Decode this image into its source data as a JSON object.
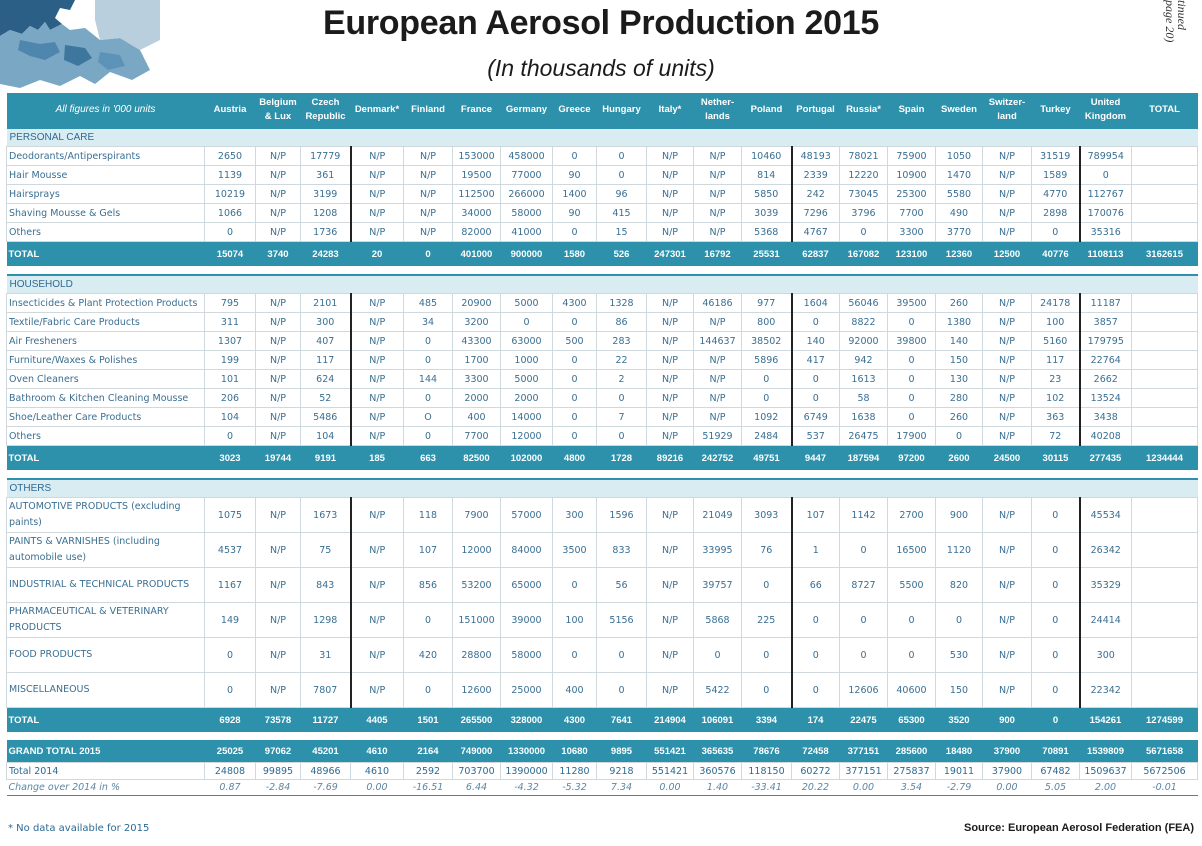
{
  "title": "European Aerosol Production 2015",
  "subtitle": "(In thousands of units)",
  "continued": [
    "tinued",
    "page 20)"
  ],
  "header": {
    "first": "All figures in '000 units",
    "columns": [
      "Austria",
      "Belgium & Lux",
      "Czech Republic",
      "Denmark*",
      "Finland",
      "France",
      "Germany",
      "Greece",
      "Hungary",
      "Italy*",
      "Nether-lands",
      "Poland",
      "Portugal",
      "Russia*",
      "Spain",
      "Sweden",
      "Switzer-land",
      "Turkey",
      "United Kingdom",
      "TOTAL"
    ]
  },
  "sections": [
    {
      "name": "PERSONAL CARE",
      "rows": [
        {
          "label": "Deodorants/Antiperspirants",
          "values": [
            "2650",
            "N/P",
            "17779",
            "N/P",
            "N/P",
            "153000",
            "458000",
            "0",
            "0",
            "N/P",
            "N/P",
            "10460",
            "48193",
            "78021",
            "75900",
            "1050",
            "N/P",
            "31519",
            "789954",
            ""
          ]
        },
        {
          "label": "Hair Mousse",
          "values": [
            "1139",
            "N/P",
            "361",
            "N/P",
            "N/P",
            "19500",
            "77000",
            "90",
            "0",
            "N/P",
            "N/P",
            "814",
            "2339",
            "12220",
            "10900",
            "1470",
            "N/P",
            "1589",
            "0",
            ""
          ]
        },
        {
          "label": "Hairsprays",
          "values": [
            "10219",
            "N/P",
            "3199",
            "N/P",
            "N/P",
            "112500",
            "266000",
            "1400",
            "96",
            "N/P",
            "N/P",
            "5850",
            "242",
            "73045",
            "25300",
            "5580",
            "N/P",
            "4770",
            "112767",
            ""
          ]
        },
        {
          "label": "Shaving Mousse & Gels",
          "values": [
            "1066",
            "N/P",
            "1208",
            "N/P",
            "N/P",
            "34000",
            "58000",
            "90",
            "415",
            "N/P",
            "N/P",
            "3039",
            "7296",
            "3796",
            "7700",
            "490",
            "N/P",
            "2898",
            "170076",
            ""
          ]
        },
        {
          "label": "Others",
          "values": [
            "0",
            "N/P",
            "1736",
            "N/P",
            "N/P",
            "82000",
            "41000",
            "0",
            "15",
            "N/P",
            "N/P",
            "5368",
            "4767",
            "0",
            "3300",
            "3770",
            "N/P",
            "0",
            "35316",
            ""
          ]
        }
      ],
      "total": {
        "label": "TOTAL",
        "values": [
          "15074",
          "3740",
          "24283",
          "20",
          "0",
          "401000",
          "900000",
          "1580",
          "526",
          "247301",
          "16792",
          "25531",
          "62837",
          "167082",
          "123100",
          "12360",
          "12500",
          "40776",
          "1108113",
          "3162615"
        ]
      }
    },
    {
      "name": "HOUSEHOLD",
      "rows": [
        {
          "label": "Insecticides & Plant Protection Products",
          "values": [
            "795",
            "N/P",
            "2101",
            "N/P",
            "485",
            "20900",
            "5000",
            "4300",
            "1328",
            "N/P",
            "46186",
            "977",
            "1604",
            "56046",
            "39500",
            "260",
            "N/P",
            "24178",
            "11187",
            ""
          ]
        },
        {
          "label": "Textile/Fabric Care Products",
          "values": [
            "311",
            "N/P",
            "300",
            "N/P",
            "34",
            "3200",
            "0",
            "0",
            "86",
            "N/P",
            "N/P",
            "800",
            "0",
            "8822",
            "0",
            "1380",
            "N/P",
            "100",
            "3857",
            ""
          ]
        },
        {
          "label": "Air Fresheners",
          "values": [
            "1307",
            "N/P",
            "407",
            "N/P",
            "0",
            "43300",
            "63000",
            "500",
            "283",
            "N/P",
            "144637",
            "38502",
            "140",
            "92000",
            "39800",
            "140",
            "N/P",
            "5160",
            "179795",
            ""
          ]
        },
        {
          "label": "Furniture/Waxes & Polishes",
          "values": [
            "199",
            "N/P",
            "117",
            "N/P",
            "0",
            "1700",
            "1000",
            "0",
            "22",
            "N/P",
            "N/P",
            "5896",
            "417",
            "942",
            "0",
            "150",
            "N/P",
            "117",
            "22764",
            ""
          ]
        },
        {
          "label": "Oven Cleaners",
          "values": [
            "101",
            "N/P",
            "624",
            "N/P",
            "144",
            "3300",
            "5000",
            "0",
            "2",
            "N/P",
            "N/P",
            "0",
            "0",
            "1613",
            "0",
            "130",
            "N/P",
            "23",
            "2662",
            ""
          ]
        },
        {
          "label": "Bathroom & Kitchen Cleaning Mousse",
          "values": [
            "206",
            "N/P",
            "52",
            "N/P",
            "0",
            "2000",
            "2000",
            "0",
            "0",
            "N/P",
            "N/P",
            "0",
            "0",
            "58",
            "0",
            "280",
            "N/P",
            "102",
            "13524",
            ""
          ]
        },
        {
          "label": "Shoe/Leather Care Products",
          "values": [
            "104",
            "N/P",
            "5486",
            "N/P",
            "O",
            "400",
            "14000",
            "0",
            "7",
            "N/P",
            "N/P",
            "1092",
            "6749",
            "1638",
            "0",
            "260",
            "N/P",
            "363",
            "3438",
            ""
          ]
        },
        {
          "label": "Others",
          "values": [
            "0",
            "N/P",
            "104",
            "N/P",
            "0",
            "7700",
            "12000",
            "0",
            "0",
            "N/P",
            "51929",
            "2484",
            "537",
            "26475",
            "17900",
            "0",
            "N/P",
            "72",
            "40208",
            ""
          ]
        }
      ],
      "total": {
        "label": "TOTAL",
        "values": [
          "3023",
          "19744",
          "9191",
          "185",
          "663",
          "82500",
          "102000",
          "4800",
          "1728",
          "89216",
          "242752",
          "49751",
          "9447",
          "187594",
          "97200",
          "2600",
          "24500",
          "30115",
          "277435",
          "1234444"
        ]
      }
    },
    {
      "name": "OTHERS",
      "rows": [
        {
          "label": "AUTOMOTIVE PRODUCTS (excluding paints)",
          "values": [
            "1075",
            "N/P",
            "1673",
            "N/P",
            "118",
            "7900",
            "57000",
            "300",
            "1596",
            "N/P",
            "21049",
            "3093",
            "107",
            "1142",
            "2700",
            "900",
            "N/P",
            "0",
            "45534",
            ""
          ]
        },
        {
          "label": "PAINTS & VARNISHES (including automobile use)",
          "values": [
            "4537",
            "N/P",
            "75",
            "N/P",
            "107",
            "12000",
            "84000",
            "3500",
            "833",
            "N/P",
            "33995",
            "76",
            "1",
            "0",
            "16500",
            "1120",
            "N/P",
            "0",
            "26342",
            ""
          ]
        },
        {
          "label": "INDUSTRIAL & TECHNICAL PRODUCTS",
          "values": [
            "1167",
            "N/P",
            "843",
            "N/P",
            "856",
            "53200",
            "65000",
            "0",
            "56",
            "N/P",
            "39757",
            "0",
            "66",
            "8727",
            "5500",
            "820",
            "N/P",
            "0",
            "35329",
            ""
          ]
        },
        {
          "label": "PHARMACEUTICAL & VETERINARY PRODUCTS",
          "values": [
            "149",
            "N/P",
            "1298",
            "N/P",
            "0",
            "151000",
            "39000",
            "100",
            "5156",
            "N/P",
            "5868",
            "225",
            "0",
            "0",
            "0",
            "0",
            "N/P",
            "0",
            "24414",
            ""
          ]
        },
        {
          "label": "FOOD PRODUCTS",
          "values": [
            "0",
            "N/P",
            "31",
            "N/P",
            "420",
            "28800",
            "58000",
            "0",
            "0",
            "N/P",
            "0",
            "0",
            "0",
            "0",
            "0",
            "530",
            "N/P",
            "0",
            "300",
            ""
          ]
        },
        {
          "label": "MISCELLANEOUS",
          "values": [
            "0",
            "N/P",
            "7807",
            "N/P",
            "0",
            "12600",
            "25000",
            "400",
            "0",
            "N/P",
            "5422",
            "0",
            "0",
            "12606",
            "40600",
            "150",
            "N/P",
            "0",
            "22342",
            ""
          ]
        }
      ],
      "total": {
        "label": "TOTAL",
        "values": [
          "6928",
          "73578",
          "11727",
          "4405",
          "1501",
          "265500",
          "328000",
          "4300",
          "7641",
          "214904",
          "106091",
          "3394",
          "174",
          "22475",
          "65300",
          "3520",
          "900",
          "0",
          "154261",
          "1274599"
        ]
      }
    }
  ],
  "grand_total": {
    "label": "GRAND TOTAL 2015",
    "values": [
      "25025",
      "97062",
      "45201",
      "4610",
      "2164",
      "749000",
      "1330000",
      "10680",
      "9895",
      "551421",
      "365635",
      "78676",
      "72458",
      "377151",
      "285600",
      "18480",
      "37900",
      "70891",
      "1539809",
      "5671658"
    ]
  },
  "total_2014": {
    "label": "Total 2014",
    "values": [
      "24808",
      "99895",
      "48966",
      "4610",
      "2592",
      "703700",
      "1390000",
      "11280",
      "9218",
      "551421",
      "360576",
      "118150",
      "60272",
      "377151",
      "275837",
      "19011",
      "37900",
      "67482",
      "1509637",
      "5672506"
    ]
  },
  "change": {
    "label": "Change over 2014 in %",
    "values": [
      "0.87",
      "-2.84",
      "-7.69",
      "0.00",
      "-16.51",
      "6.44",
      "-4.32",
      "-5.32",
      "7.34",
      "0.00",
      "1.40",
      "-33.41",
      "20.22",
      "0.00",
      "3.54",
      "-2.79",
      "0.00",
      "5.05",
      "2.00",
      "-0.01"
    ]
  },
  "footnote": "* No data available for 2015",
  "source": "Source: European Aerosol Federation (FEA)",
  "colors": {
    "accent": "#2d91ab",
    "section_bg": "#d9ecf2",
    "text": "#2c6a93"
  }
}
